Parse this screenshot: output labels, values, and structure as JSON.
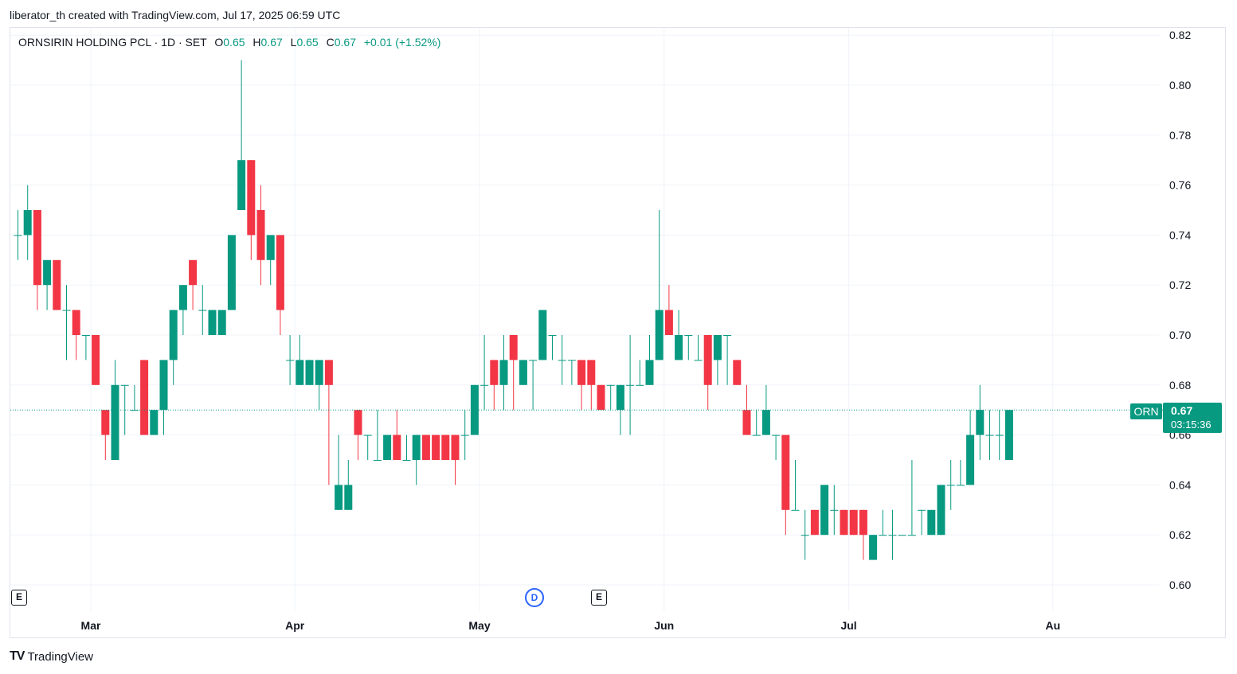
{
  "caption": "liberator_th created with TradingView.com, Jul 17, 2025 06:59 UTC",
  "legend": {
    "symbol": "ORNSIRIN HOLDING PCL · 1D · SET",
    "o_label": "O",
    "o_value": "0.65",
    "h_label": "H",
    "h_value": "0.67",
    "l_label": "L",
    "l_value": "0.65",
    "c_label": "C",
    "c_value": "0.67",
    "change": "+0.01 (+1.52%)"
  },
  "price_tag": {
    "symbol": "ORN",
    "price": "0.67",
    "countdown": "03:15:36"
  },
  "events": [
    {
      "type": "E",
      "label": "E"
    },
    {
      "type": "D",
      "label": "D"
    },
    {
      "type": "E",
      "label": "E"
    }
  ],
  "brand": {
    "logo_mark": "TV",
    "name": "TradingView"
  },
  "colors": {
    "up": "#089981",
    "down": "#f23645",
    "grid": "#f0f3fa",
    "text": "#131722"
  },
  "chart_data": {
    "type": "candlestick",
    "title": "ORNSIRIN HOLDING PCL · 1D · SET",
    "ylim": [
      0.59,
      0.82
    ],
    "y_ticks": [
      0.82,
      0.8,
      0.78,
      0.76,
      0.74,
      0.72,
      0.7,
      0.68,
      0.66,
      0.64,
      0.62,
      0.6
    ],
    "x_ticks": [
      {
        "label": "Mar",
        "index": 7.5
      },
      {
        "label": "Apr",
        "index": 28.5
      },
      {
        "label": "May",
        "index": 47.5
      },
      {
        "label": "Jun",
        "index": 66.5
      },
      {
        "label": "Jul",
        "index": 85.5
      },
      {
        "label": "Aug",
        "display": "Au",
        "index": 106.5
      }
    ],
    "last_price": 0.67,
    "candles": [
      [
        0.74,
        0.75,
        0.73,
        0.74
      ],
      [
        0.74,
        0.76,
        0.73,
        0.75
      ],
      [
        0.75,
        0.75,
        0.71,
        0.72
      ],
      [
        0.72,
        0.73,
        0.71,
        0.73
      ],
      [
        0.73,
        0.73,
        0.71,
        0.71
      ],
      [
        0.71,
        0.72,
        0.69,
        0.71
      ],
      [
        0.71,
        0.71,
        0.69,
        0.7
      ],
      [
        0.7,
        0.7,
        0.69,
        0.7
      ],
      [
        0.7,
        0.7,
        0.68,
        0.68
      ],
      [
        0.67,
        0.67,
        0.65,
        0.66
      ],
      [
        0.65,
        0.69,
        0.65,
        0.68
      ],
      [
        0.68,
        0.68,
        0.66,
        0.68
      ],
      [
        0.67,
        0.68,
        0.67,
        0.67
      ],
      [
        0.69,
        0.69,
        0.66,
        0.66
      ],
      [
        0.66,
        0.67,
        0.66,
        0.67
      ],
      [
        0.67,
        0.69,
        0.66,
        0.69
      ],
      [
        0.69,
        0.71,
        0.68,
        0.71
      ],
      [
        0.71,
        0.72,
        0.7,
        0.72
      ],
      [
        0.73,
        0.73,
        0.71,
        0.72
      ],
      [
        0.71,
        0.72,
        0.7,
        0.71
      ],
      [
        0.7,
        0.71,
        0.7,
        0.71
      ],
      [
        0.7,
        0.71,
        0.7,
        0.71
      ],
      [
        0.71,
        0.74,
        0.71,
        0.74
      ],
      [
        0.75,
        0.81,
        0.75,
        0.77
      ],
      [
        0.77,
        0.77,
        0.73,
        0.74
      ],
      [
        0.75,
        0.76,
        0.72,
        0.73
      ],
      [
        0.73,
        0.74,
        0.72,
        0.74
      ],
      [
        0.74,
        0.74,
        0.7,
        0.71
      ],
      [
        0.69,
        0.7,
        0.68,
        0.69
      ],
      [
        0.68,
        0.7,
        0.68,
        0.69
      ],
      [
        0.68,
        0.69,
        0.68,
        0.69
      ],
      [
        0.68,
        0.69,
        0.67,
        0.69
      ],
      [
        0.69,
        0.69,
        0.64,
        0.68
      ],
      [
        0.63,
        0.66,
        0.63,
        0.64
      ],
      [
        0.63,
        0.65,
        0.63,
        0.64
      ],
      [
        0.67,
        0.67,
        0.65,
        0.66
      ],
      [
        0.66,
        0.66,
        0.65,
        0.66
      ],
      [
        0.65,
        0.67,
        0.65,
        0.65
      ],
      [
        0.65,
        0.66,
        0.65,
        0.66
      ],
      [
        0.66,
        0.67,
        0.65,
        0.65
      ],
      [
        0.65,
        0.66,
        0.65,
        0.65
      ],
      [
        0.65,
        0.66,
        0.64,
        0.66
      ],
      [
        0.66,
        0.66,
        0.65,
        0.65
      ],
      [
        0.66,
        0.66,
        0.65,
        0.65
      ],
      [
        0.66,
        0.66,
        0.65,
        0.65
      ],
      [
        0.66,
        0.66,
        0.64,
        0.65
      ],
      [
        0.66,
        0.67,
        0.65,
        0.66
      ],
      [
        0.66,
        0.68,
        0.66,
        0.68
      ],
      [
        0.68,
        0.7,
        0.67,
        0.68
      ],
      [
        0.69,
        0.69,
        0.67,
        0.68
      ],
      [
        0.68,
        0.7,
        0.67,
        0.69
      ],
      [
        0.7,
        0.7,
        0.67,
        0.69
      ],
      [
        0.68,
        0.69,
        0.68,
        0.69
      ],
      [
        0.69,
        0.69,
        0.67,
        0.69
      ],
      [
        0.69,
        0.71,
        0.69,
        0.71
      ],
      [
        0.7,
        0.7,
        0.69,
        0.7
      ],
      [
        0.69,
        0.7,
        0.68,
        0.69
      ],
      [
        0.69,
        0.69,
        0.68,
        0.69
      ],
      [
        0.69,
        0.69,
        0.67,
        0.68
      ],
      [
        0.69,
        0.69,
        0.67,
        0.68
      ],
      [
        0.68,
        0.68,
        0.67,
        0.67
      ],
      [
        0.68,
        0.68,
        0.67,
        0.68
      ],
      [
        0.67,
        0.68,
        0.66,
        0.68
      ],
      [
        0.68,
        0.7,
        0.66,
        0.68
      ],
      [
        0.68,
        0.69,
        0.68,
        0.68
      ],
      [
        0.68,
        0.7,
        0.68,
        0.69
      ],
      [
        0.69,
        0.75,
        0.69,
        0.71
      ],
      [
        0.71,
        0.72,
        0.7,
        0.7
      ],
      [
        0.69,
        0.71,
        0.69,
        0.7
      ],
      [
        0.7,
        0.7,
        0.69,
        0.7
      ],
      [
        0.69,
        0.7,
        0.69,
        0.69
      ],
      [
        0.7,
        0.7,
        0.67,
        0.68
      ],
      [
        0.69,
        0.7,
        0.68,
        0.7
      ],
      [
        0.7,
        0.7,
        0.68,
        0.7
      ],
      [
        0.69,
        0.69,
        0.68,
        0.68
      ],
      [
        0.67,
        0.68,
        0.66,
        0.66
      ],
      [
        0.66,
        0.67,
        0.66,
        0.66
      ],
      [
        0.66,
        0.68,
        0.66,
        0.67
      ],
      [
        0.66,
        0.66,
        0.65,
        0.66
      ],
      [
        0.66,
        0.66,
        0.62,
        0.63
      ],
      [
        0.63,
        0.65,
        0.63,
        0.63
      ],
      [
        0.62,
        0.63,
        0.61,
        0.62
      ],
      [
        0.63,
        0.63,
        0.62,
        0.62
      ],
      [
        0.62,
        0.64,
        0.62,
        0.64
      ],
      [
        0.63,
        0.64,
        0.62,
        0.63
      ],
      [
        0.63,
        0.63,
        0.62,
        0.62
      ],
      [
        0.63,
        0.63,
        0.62,
        0.62
      ],
      [
        0.63,
        0.63,
        0.61,
        0.62
      ],
      [
        0.61,
        0.62,
        0.61,
        0.62
      ],
      [
        0.62,
        0.63,
        0.62,
        0.62
      ],
      [
        0.62,
        0.63,
        0.61,
        0.62
      ],
      [
        0.62,
        0.62,
        0.62,
        0.62
      ],
      [
        0.62,
        0.65,
        0.62,
        0.62
      ],
      [
        0.63,
        0.63,
        0.62,
        0.63
      ],
      [
        0.62,
        0.63,
        0.62,
        0.63
      ],
      [
        0.62,
        0.64,
        0.62,
        0.64
      ],
      [
        0.64,
        0.65,
        0.63,
        0.64
      ],
      [
        0.64,
        0.65,
        0.64,
        0.64
      ],
      [
        0.64,
        0.67,
        0.64,
        0.66
      ],
      [
        0.66,
        0.68,
        0.65,
        0.67
      ],
      [
        0.66,
        0.67,
        0.65,
        0.66
      ],
      [
        0.66,
        0.67,
        0.65,
        0.66
      ],
      [
        0.65,
        0.67,
        0.65,
        0.67
      ]
    ]
  }
}
